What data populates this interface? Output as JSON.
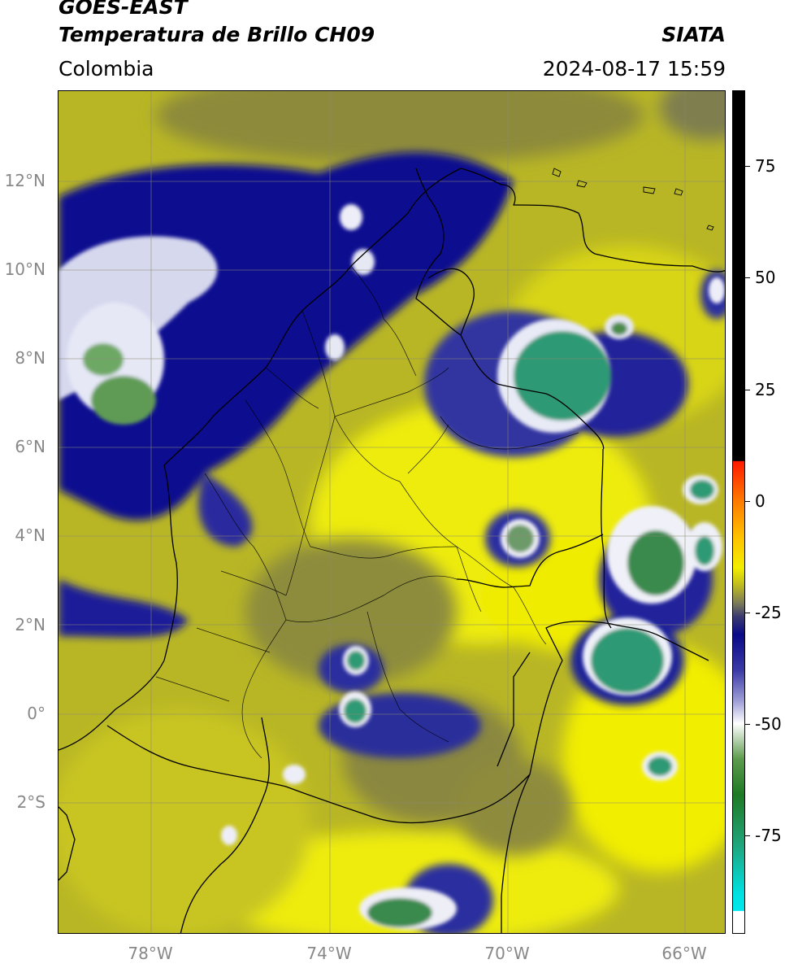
{
  "header": {
    "source": "GOES-EAST",
    "title": "Temperatura de Brillo CH09",
    "region": "Colombia",
    "organization": "SIATA",
    "datetime": "2024-08-17 15:59"
  },
  "map": {
    "lat_labels": [
      "12°N",
      "10°N",
      "8°N",
      "6°N",
      "4°N",
      "2°N",
      "0°",
      "2°S"
    ],
    "lon_labels": [
      "78°W",
      "74°W",
      "70°W",
      "66°W"
    ],
    "latitudes": [
      12,
      10,
      8,
      6,
      4,
      2,
      0,
      -2
    ],
    "longitudes": [
      -78,
      -74,
      -70,
      -66
    ],
    "extent": {
      "lon_min": -80.1,
      "lon_max": -65.1,
      "lat_min": -5.0,
      "lat_max": 14.0
    },
    "grid": true
  },
  "colorbar": {
    "ticks": [
      75,
      50,
      25,
      0,
      -25,
      -50,
      -75
    ],
    "tick_labels": [
      "75",
      "50",
      "25",
      "0",
      "-25",
      "-50",
      "-75"
    ],
    "range": [
      -97,
      92
    ],
    "stops": [
      {
        "value": 92,
        "color": "#000000"
      },
      {
        "value": 9,
        "color": "#000000"
      },
      {
        "value": 8.9,
        "color": "#ff1a00"
      },
      {
        "value": 0,
        "color": "#ff7a00"
      },
      {
        "value": -8,
        "color": "#ffc000"
      },
      {
        "value": -15,
        "color": "#f2ee00"
      },
      {
        "value": -19,
        "color": "#bcba20"
      },
      {
        "value": -23,
        "color": "#7a7a5a"
      },
      {
        "value": -26,
        "color": "#3a3a70"
      },
      {
        "value": -30,
        "color": "#0a0a88"
      },
      {
        "value": -38,
        "color": "#3a3aa6"
      },
      {
        "value": -45,
        "color": "#a0a0d8"
      },
      {
        "value": -50,
        "color": "#ffffff"
      },
      {
        "value": -58,
        "color": "#5c9a4c"
      },
      {
        "value": -66,
        "color": "#1e7a24"
      },
      {
        "value": -77,
        "color": "#20a47a"
      },
      {
        "value": -88,
        "color": "#00e0e0"
      },
      {
        "value": -92,
        "color": "#00e8ec"
      },
      {
        "value": -92.1,
        "color": "#ffffff"
      },
      {
        "value": -97,
        "color": "#ffffff"
      }
    ]
  }
}
